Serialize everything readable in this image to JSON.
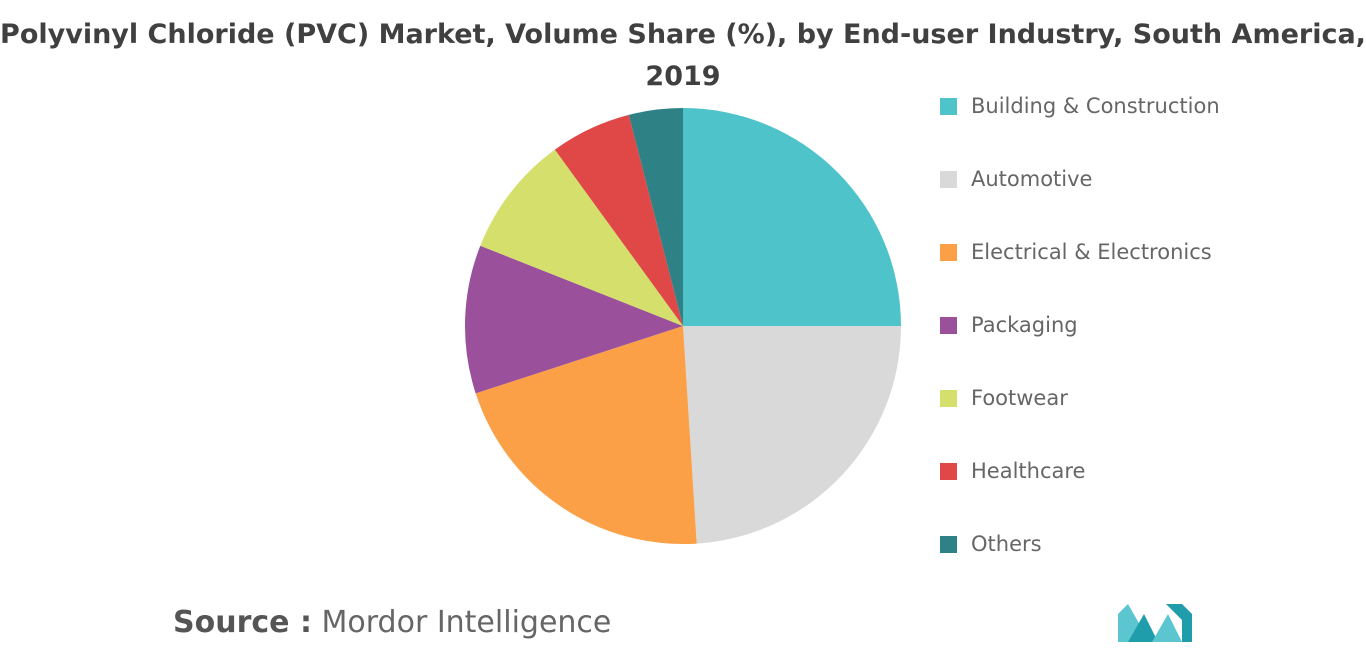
{
  "chart_data": {
    "type": "pie",
    "title_line1": "Polyvinyl Chloride (PVC) Market, Volume Share (%), by End-user Industry, South America,",
    "title_line2": "2019",
    "slices": [
      {
        "name": "Building & Construction",
        "value": 25,
        "color": "#4FC3CA"
      },
      {
        "name": "Automotive",
        "value": 24,
        "color": "#D9D9D9"
      },
      {
        "name": "Electrical & Electronics",
        "value": 21,
        "color": "#FBA046"
      },
      {
        "name": "Packaging",
        "value": 11,
        "color": "#9B509C"
      },
      {
        "name": "Footwear",
        "value": 9,
        "color": "#D4E06B"
      },
      {
        "name": "Healthcare",
        "value": 6,
        "color": "#E04848"
      },
      {
        "name": "Others",
        "value": 4,
        "color": "#2E8285"
      }
    ],
    "start_angle_deg": 0,
    "direction": "clockwise",
    "legend_position": "right"
  },
  "source": {
    "key": "Source :",
    "value": "Mordor Intelligence"
  },
  "logo": {
    "icon": "mordor-intelligence-logo-icon",
    "colors": [
      "#1F9DAB",
      "#5BC6D0"
    ]
  }
}
